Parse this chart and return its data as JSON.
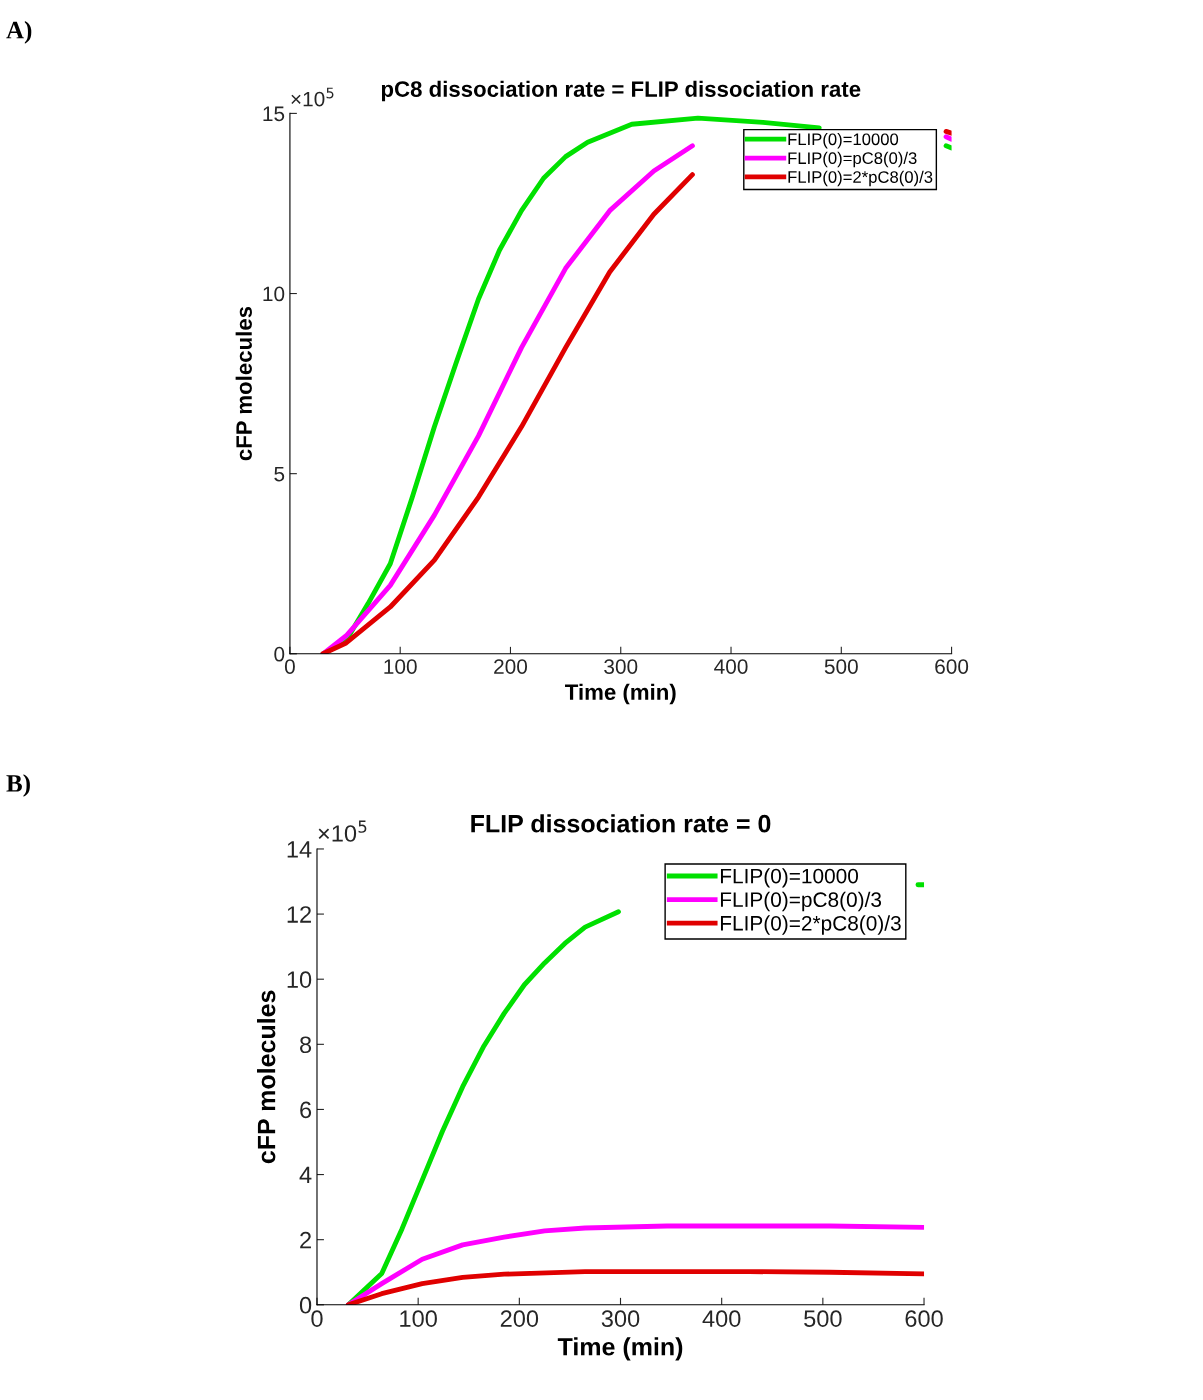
{
  "chart_data": [
    {
      "type": "line",
      "title": "pC8 dissociation rate = FLIP dissociation rate",
      "xlabel": "Time (min)",
      "ylabel": "cFP molecules",
      "annotations": [
        "A)",
        "×10$^{5}$"
      ],
      "xlim": [
        0,
        600
      ],
      "xticks": [
        0,
        100,
        200,
        300,
        400,
        500,
        600
      ],
      "ylim": [
        0,
        15
      ],
      "yticks": [
        0,
        5,
        10,
        15
      ],
      "legend": "top right",
      "grid": false,
      "line_style": "solid",
      "marker": "none",
      "series": [
        {
          "name": "FLIP(0)=10000",
          "color": "#00e000",
          "x": [
            30,
            51,
            71,
            91,
            111,
            131,
            151,
            171,
            190,
            210,
            230,
            250,
            270,
            310,
            370,
            429,
            480,
            550,
            595,
            600
          ],
          "values": [
            0,
            0.37,
            1.4,
            2.5,
            4.35,
            6.3,
            8.1,
            9.85,
            11.2,
            12.3,
            13.2,
            13.8,
            14.2,
            14.7,
            14.87,
            14.75,
            14.6,
            null,
            14.1,
            14.04
          ]
        },
        {
          "name": "FLIP(0)=pC8(0)/3",
          "color": "#ff00ff",
          "x": [
            30,
            51,
            91,
            131,
            171,
            210,
            250,
            290,
            330,
            365,
            480,
            595,
            600
          ],
          "values": [
            0,
            0.5,
            1.9,
            3.85,
            6.05,
            8.5,
            10.7,
            12.3,
            13.4,
            14.1,
            null,
            14.35,
            14.28
          ]
        },
        {
          "name": "FLIP(0)=2*pC8(0)/3",
          "color": "#e00000",
          "x": [
            30,
            51,
            91,
            131,
            171,
            210,
            250,
            290,
            330,
            365,
            480,
            595,
            600
          ],
          "values": [
            0,
            0.3,
            1.3,
            2.6,
            4.35,
            6.3,
            8.5,
            10.6,
            12.2,
            13.3,
            null,
            14.5,
            14.45
          ]
        }
      ]
    },
    {
      "type": "line",
      "title": "FLIP dissociation rate = 0",
      "xlabel": "Time (min)",
      "ylabel": "cFP molecules",
      "annotations": [
        "B)",
        "×10$^{5}$"
      ],
      "xlim": [
        0,
        600
      ],
      "xticks": [
        0,
        100,
        200,
        300,
        400,
        500,
        600
      ],
      "ylim": [
        0,
        14
      ],
      "yticks": [
        0,
        2,
        4,
        6,
        8,
        10,
        12,
        14
      ],
      "legend": "top right",
      "grid": false,
      "line_style": "solid",
      "marker": "none",
      "series": [
        {
          "name": "FLIP(0)=10000",
          "color": "#00e000",
          "x": [
            31,
            64,
            84,
            104,
            124,
            144,
            165,
            185,
            205,
            225,
            245,
            265,
            298,
            450,
            594,
            600
          ],
          "values": [
            0,
            0.96,
            2.33,
            3.83,
            5.33,
            6.7,
            7.95,
            8.95,
            9.83,
            10.5,
            11.1,
            11.6,
            12.07,
            null,
            12.9,
            12.9
          ]
        },
        {
          "name": "FLIP(0)=pC8(0)/3",
          "color": "#ff00ff",
          "x": [
            31,
            64,
            104,
            144,
            185,
            225,
            265,
            346,
            427,
            507,
            600
          ],
          "values": [
            0,
            0.65,
            1.4,
            1.84,
            2.08,
            2.27,
            2.36,
            2.42,
            2.42,
            2.42,
            2.38
          ]
        },
        {
          "name": "FLIP(0)=2*pC8(0)/3",
          "color": "#e00000",
          "x": [
            31,
            64,
            104,
            144,
            185,
            265,
            346,
            427,
            507,
            600
          ],
          "values": [
            0,
            0.34,
            0.65,
            0.84,
            0.94,
            1.02,
            1.02,
            1.02,
            1.0,
            0.95
          ]
        }
      ]
    }
  ]
}
